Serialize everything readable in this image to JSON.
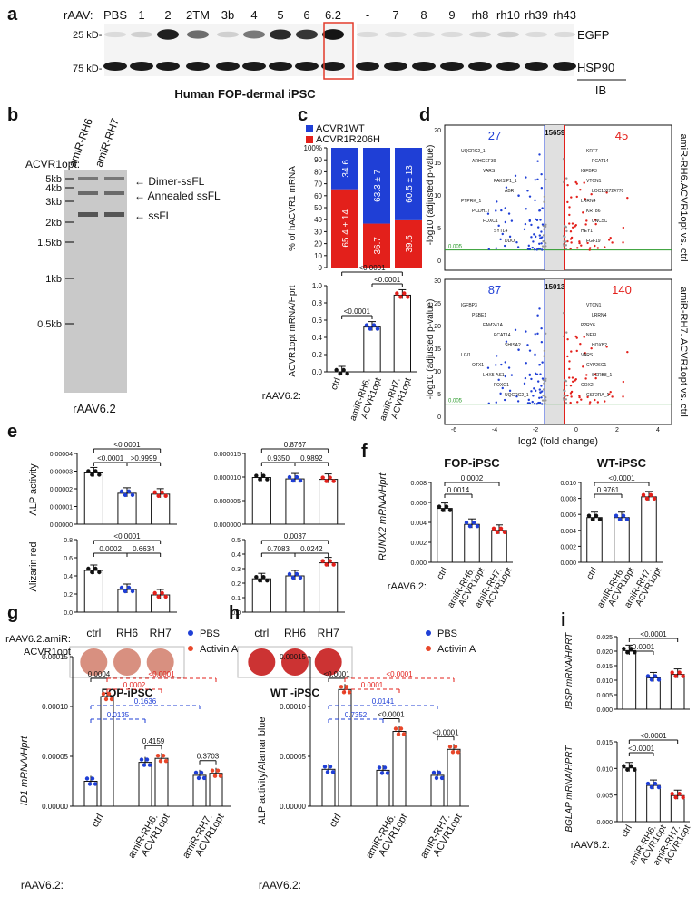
{
  "panel_letters": [
    "a",
    "b",
    "c",
    "d",
    "e",
    "f",
    "g",
    "h",
    "i"
  ],
  "panel_a": {
    "prefix": "rAAV:",
    "lanes_left": [
      "PBS",
      "1",
      "2",
      "2TM",
      "3b",
      "4",
      "5",
      "6",
      "6.2"
    ],
    "lanes_right": [
      "-",
      "7",
      "8",
      "9",
      "rh8",
      "rh10",
      "rh39",
      "rh43"
    ],
    "markers": [
      "25 kD-",
      "75 kD-"
    ],
    "row_labels": [
      "EGFP",
      "HSP90"
    ],
    "caption": "Human FOP-dermal iPSC",
    "ib": "IB",
    "egfp_intensity": [
      0.05,
      0.1,
      0.9,
      0.55,
      0.1,
      0.5,
      0.85,
      0.8,
      0.95,
      0.05,
      0.05,
      0.05,
      0.05,
      0.08,
      0.1,
      0.05,
      0.05
    ],
    "highlight_color": "#e23a2a"
  },
  "panel_b": {
    "header": "ACVR1opt:",
    "lanes": [
      "amiR-RH6",
      "amiR-RH7"
    ],
    "ladder": [
      "5kb",
      "4kb",
      "3kb",
      "2kb",
      "1.5kb",
      "1kb",
      "0.5kb"
    ],
    "bands": [
      "Dimer-ssFL",
      "Annealed ssFL",
      "ssFL"
    ],
    "caption": "rAAV6.2"
  },
  "panel_c": {
    "legend": [
      "ACVR1WT",
      "ACVR1R206H"
    ],
    "top_chart": {
      "type": "bar",
      "ylabel": "% of hACVR1 mRNA",
      "yticks": [
        "0",
        "10",
        "20",
        "30",
        "40",
        "50",
        "60",
        "70",
        "80",
        "90",
        "100%"
      ],
      "stacks": [
        {
          "wt": 34.6,
          "mut": 65.4,
          "wt_label": "34.6",
          "mut_label": "65.4 ± 14"
        },
        {
          "wt": 63.3,
          "mut": 36.7,
          "wt_label": "63.3 ± 7",
          "mut_label": "36.7"
        },
        {
          "wt": 60.5,
          "mut": 39.5,
          "wt_label": "60.5 ± 13",
          "mut_label": "39.5"
        }
      ],
      "colors": {
        "wt": "#1f3fd6",
        "mut": "#e3201b"
      }
    },
    "bottom_chart": {
      "type": "bar",
      "ylabel": "ACVR1opt mRNA/Hprt",
      "yticks": [
        "0.0",
        "0.2",
        "0.4",
        "0.6",
        "0.8",
        "1.0"
      ],
      "ylim": [
        0,
        1.0
      ],
      "values": [
        0.0,
        0.52,
        0.89
      ],
      "pvals": [
        "<0.0001",
        "<0.0001",
        "<0.0001"
      ]
    },
    "rlabel": "rAAV6.2:",
    "categories": [
      "ctrl",
      "amiR-RH6.",
      "amiR-RH7."
    ],
    "sub_lines": [
      "ACVR1opt",
      "ACVR1opt"
    ]
  },
  "panel_d": {
    "top": {
      "left": "27",
      "mid": "15659",
      "right": "45",
      "title": "amiR-RH6.ACVR1opt vs. ctrl",
      "genes": [
        "UQCRC2_1",
        "ARHGEF39",
        "VARS",
        "PAK1IP1_1",
        "ABR",
        "PTPRK_1",
        "PCDH17",
        "FOXC1",
        "SYTL4",
        "DDO",
        "KRT7",
        "PCAT14",
        "IGFBP3",
        "VTCN1",
        "LOC102724770",
        "LRRN4",
        "KRT86",
        "UNC5C",
        "HEY1",
        "FGF19"
      ]
    },
    "bottom": {
      "left": "87",
      "mid": "15013",
      "right": "140",
      "title": "amiR-RH7. ACVR1opt vs. ctrl",
      "genes": [
        "IGFBP3",
        "PSBE1",
        "FAM241A",
        "PCAT14",
        "SHISA2",
        "LGI1",
        "OTX1",
        "LHX5-AS1",
        "FOXG1",
        "UQCRC2_1",
        "VTCN1",
        "LRRN4",
        "P2RY6",
        "NEFL",
        "HOXB2",
        "VARS",
        "CYP26C1",
        "SCRB8_1",
        "COX2",
        "CSF2RA_1"
      ]
    },
    "threshold_label": "0.005",
    "ylabel": "-log10 (adjusted p-value)",
    "xlabel": "log2 (fold change)",
    "yticks_top": [
      "0",
      "5",
      "10",
      "15",
      "20"
    ],
    "yticks_bottom": [
      "0",
      "5",
      "10",
      "15",
      "20",
      "25",
      "30"
    ],
    "xticks": [
      "-6",
      "-4",
      "-2",
      "0",
      "2",
      "4"
    ]
  },
  "panel_e": {
    "fop": {
      "alp_pvals": [
        "<0.0001",
        "<0.0001",
        ">0.9999"
      ],
      "ar_pvals": [
        "<0.0001",
        "0.0002",
        "0.6634"
      ],
      "alp": [
        2.9e-05,
        1.75e-05,
        1.7e-05
      ],
      "ar": [
        0.46,
        0.25,
        0.19
      ],
      "caption": "FOP-iPSC"
    },
    "wt": {
      "alp_pvals": [
        "0.8767",
        "0.9350",
        "0.9892"
      ],
      "ar_pvals": [
        "0.0037",
        "0.7083",
        "0.0242"
      ],
      "alp": [
        9.9e-06,
        9.6e-06,
        9.5e-06
      ],
      "ar": [
        0.23,
        0.25,
        0.34
      ],
      "caption": "WT -iPSC"
    },
    "alp_label": "ALP activity",
    "ar_label": "Alizarin red",
    "alp_yticks_fop": [
      "0.00000",
      "0.00001",
      "0.00002",
      "0.00003",
      "0.00004"
    ],
    "alp_yticks_wt": [
      "0.000000",
      "0.000005",
      "0.000010",
      "0.000015"
    ],
    "ar_yticks_fop": [
      "0.0",
      "0.2",
      "0.4",
      "0.6",
      "0.8"
    ],
    "ar_yticks_wt": [
      "0.0",
      "0.1",
      "0.2",
      "0.3",
      "0.4",
      "0.5"
    ],
    "rlabel": "rAAV6.2.amiR:",
    "rlabel2": "ACVR1opt",
    "categories": [
      "ctrl",
      "RH6",
      "RH7"
    ]
  },
  "panel_f": {
    "ylabel": "RUNX2 mRNA/Hprt",
    "fop": {
      "title": "FOP-iPSC",
      "values": [
        0.0054,
        0.0038,
        0.0032
      ],
      "pvals": [
        "0.0014",
        "0.0002"
      ],
      "yticks": [
        "0.000",
        "0.002",
        "0.004",
        "0.006",
        "0.008"
      ]
    },
    "wt": {
      "title": "WT-iPSC",
      "values": [
        0.0056,
        0.0056,
        0.0082
      ],
      "pvals": [
        "0.9761",
        "<0.0001"
      ],
      "yticks": [
        "0.000",
        "0.002",
        "0.004",
        "0.006",
        "0.008",
        "0.010"
      ]
    },
    "rlabel": "rAAV6.2:",
    "categories": [
      "ctrl",
      "amiR-RH6.",
      "amiR-RH7."
    ],
    "sub": "ACVR1opt"
  },
  "panel_g": {
    "ylabel": "ID1 mRNA/Hprt",
    "legend": [
      "PBS",
      "Activin A"
    ],
    "yticks": [
      "0.00000",
      "0.00005",
      "0.00010",
      "0.00015"
    ],
    "pbs": [
      2.5e-05,
      4.4e-05,
      3.1e-05
    ],
    "act": [
      0.00011,
      4.8e-05,
      3.3e-05
    ],
    "pvals_black": [
      "0.0004",
      "0.4159",
      "0.3703"
    ],
    "pvals_blue": [
      "0.1636",
      "0.0135"
    ],
    "pvals_red": [
      "<0.0001",
      "0.0002"
    ],
    "rlabel": "rAAV6.2:",
    "categories": [
      "ctrl",
      "amiR-RH6.",
      "amiR-RH7."
    ],
    "sub": "ACVR1opt"
  },
  "panel_h": {
    "ylabel": "ALP activity/Alamar blue",
    "legend": [
      "PBS",
      "Activin A"
    ],
    "yticks": [
      "0.00000",
      "0.00005",
      "0.00010",
      "0.00015"
    ],
    "pbs": [
      3.7e-05,
      3.6e-05,
      3.1e-05
    ],
    "act": [
      0.000117,
      7.5e-05,
      5.7e-05
    ],
    "pvals_black": [
      "<0.0001",
      "<0.0001",
      "<0.0001"
    ],
    "pvals_blue": [
      "0.0141",
      "0.7352"
    ],
    "pvals_red": [
      "<0.0001",
      "0.0001"
    ],
    "rlabel": "rAAV6.2:",
    "categories": [
      "ctrl",
      "amiR-RH6.",
      "amiR-RH7."
    ],
    "sub": "ACVR1opt"
  },
  "panel_i": {
    "ibsp": {
      "ylabel": "IBSP mRNA/HPRT",
      "values": [
        0.0202,
        0.0108,
        0.012
      ],
      "pvals": [
        "<0.0001",
        "<0.0001"
      ],
      "yticks": [
        "0.000",
        "0.005",
        "0.010",
        "0.015",
        "0.020",
        "0.025"
      ]
    },
    "bglap": {
      "ylabel": "BGLAP mRNA/HPRT",
      "values": [
        0.0101,
        0.0068,
        0.0049
      ],
      "pvals": [
        "<0.0001",
        "<0.0001"
      ],
      "yticks": [
        "0.000",
        "0.005",
        "0.010",
        "0.015"
      ]
    },
    "rlabel": "rAAV6.2:",
    "categories": [
      "ctrl",
      "amiR-RH6.",
      "amiR-RH7."
    ],
    "sub": "ACVR1opt"
  },
  "colors": {
    "blue": "#1f3fd6",
    "red": "#e3201b",
    "pbs": "#1f3fd6",
    "act": "#e8472a"
  },
  "chart_data": [
    {
      "type": "bar",
      "title": "c top",
      "categories": [
        "ctrl",
        "amiR-RH6.ACVR1opt",
        "amiR-RH7.ACVR1opt"
      ],
      "series": [
        {
          "name": "ACVR1WT",
          "values": [
            34.6,
            63.3,
            60.5
          ]
        },
        {
          "name": "ACVR1R206H",
          "values": [
            65.4,
            36.7,
            39.5
          ]
        }
      ],
      "ylabel": "% of hACVR1 mRNA",
      "ylim": [
        0,
        100
      ]
    },
    {
      "type": "bar",
      "title": "c bottom",
      "categories": [
        "ctrl",
        "amiR-RH6.ACVR1opt",
        "amiR-RH7.ACVR1opt"
      ],
      "values": [
        0.0,
        0.52,
        0.89
      ],
      "ylabel": "ACVR1opt mRNA/Hprt",
      "ylim": [
        0,
        1.0
      ]
    },
    {
      "type": "bar",
      "title": "e FOP ALP",
      "categories": [
        "ctrl",
        "RH6",
        "RH7"
      ],
      "values": [
        2.9e-05,
        1.75e-05,
        1.7e-05
      ],
      "ylim": [
        0,
        4e-05
      ]
    },
    {
      "type": "bar",
      "title": "e FOP Alizarin",
      "categories": [
        "ctrl",
        "RH6",
        "RH7"
      ],
      "values": [
        0.46,
        0.25,
        0.19
      ],
      "ylim": [
        0,
        0.8
      ]
    },
    {
      "type": "bar",
      "title": "e WT ALP",
      "categories": [
        "ctrl",
        "RH6",
        "RH7"
      ],
      "values": [
        9.9e-06,
        9.6e-06,
        9.5e-06
      ],
      "ylim": [
        0,
        1.5e-05
      ]
    },
    {
      "type": "bar",
      "title": "e WT Alizarin",
      "categories": [
        "ctrl",
        "RH6",
        "RH7"
      ],
      "values": [
        0.23,
        0.25,
        0.34
      ],
      "ylim": [
        0,
        0.5
      ]
    },
    {
      "type": "bar",
      "title": "f FOP",
      "categories": [
        "ctrl",
        "amiR-RH6.",
        "amiR-RH7."
      ],
      "values": [
        0.0054,
        0.0038,
        0.0032
      ],
      "ylim": [
        0,
        0.008
      ]
    },
    {
      "type": "bar",
      "title": "f WT",
      "categories": [
        "ctrl",
        "amiR-RH6.",
        "amiR-RH7."
      ],
      "values": [
        0.0056,
        0.0056,
        0.0082
      ],
      "ylim": [
        0,
        0.01
      ]
    },
    {
      "type": "bar",
      "title": "g",
      "categories": [
        "ctrl",
        "amiR-RH6.",
        "amiR-RH7."
      ],
      "series": [
        {
          "name": "PBS",
          "values": [
            2.5e-05,
            4.4e-05,
            3.1e-05
          ]
        },
        {
          "name": "Activin A",
          "values": [
            0.00011,
            4.8e-05,
            3.3e-05
          ]
        }
      ],
      "ylim": [
        0,
        0.00015
      ]
    },
    {
      "type": "bar",
      "title": "h",
      "categories": [
        "ctrl",
        "amiR-RH6.",
        "amiR-RH7."
      ],
      "series": [
        {
          "name": "PBS",
          "values": [
            3.7e-05,
            3.6e-05,
            3.1e-05
          ]
        },
        {
          "name": "Activin A",
          "values": [
            0.000117,
            7.5e-05,
            5.7e-05
          ]
        }
      ],
      "ylim": [
        0,
        0.00015
      ]
    },
    {
      "type": "bar",
      "title": "i IBSP",
      "categories": [
        "ctrl",
        "amiR-RH6.",
        "amiR-RH7."
      ],
      "values": [
        0.0202,
        0.0108,
        0.012
      ],
      "ylim": [
        0,
        0.025
      ]
    },
    {
      "type": "bar",
      "title": "i BGLAP",
      "categories": [
        "ctrl",
        "amiR-RH6.",
        "amiR-RH7."
      ],
      "values": [
        0.0101,
        0.0068,
        0.0049
      ],
      "ylim": [
        0,
        0.015
      ]
    }
  ]
}
